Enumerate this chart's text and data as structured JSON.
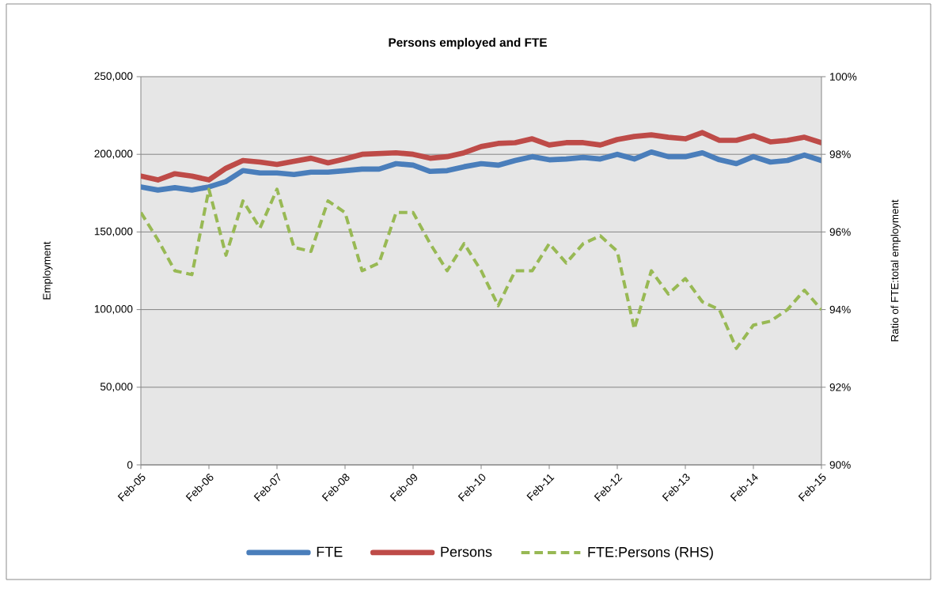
{
  "chart_data": {
    "type": "line",
    "title": "Persons employed and FTE",
    "ylabel": "Employment",
    "y2label": "Ratio of FTE:total employment",
    "categories": [
      "Feb-05",
      null,
      null,
      null,
      "Feb-06",
      null,
      null,
      null,
      "Feb-07",
      null,
      null,
      null,
      "Feb-08",
      null,
      null,
      null,
      "Feb-09",
      null,
      null,
      null,
      "Feb-10",
      null,
      null,
      null,
      "Feb-11",
      null,
      null,
      null,
      "Feb-12",
      null,
      null,
      null,
      "Feb-13",
      null,
      null,
      null,
      "Feb-14",
      null,
      null,
      null,
      "Feb-15"
    ],
    "series": [
      {
        "name": "FTE",
        "color": "#4a7ebb",
        "values": [
          179000,
          177000,
          178500,
          177000,
          179000,
          182500,
          189500,
          188000,
          188000,
          187000,
          188500,
          188500,
          189500,
          190500,
          190500,
          194000,
          193000,
          189000,
          189500,
          192000,
          194000,
          193000,
          196000,
          198500,
          196500,
          197000,
          198000,
          197000,
          200000,
          197000,
          201500,
          198500,
          198500,
          201000,
          196500,
          194000,
          198500,
          195000,
          196000,
          199500,
          196000
        ]
      },
      {
        "name": "Persons",
        "color": "#be4b48",
        "values": [
          186000,
          183500,
          187500,
          186000,
          183500,
          191000,
          196000,
          195000,
          193500,
          195500,
          197500,
          194500,
          197000,
          200000,
          200500,
          201000,
          200000,
          197500,
          198500,
          201000,
          205000,
          207000,
          207500,
          210000,
          206000,
          207500,
          207500,
          206000,
          209500,
          211500,
          212500,
          211000,
          210000,
          214000,
          209000,
          209000,
          212000,
          208000,
          209000,
          211000,
          207500
        ]
      },
      {
        "name": "FTE:Persons (RHS)",
        "color": "#98b954",
        "axis": "y2",
        "line_style": "dashed",
        "values": [
          96.5,
          95.8,
          95.0,
          94.9,
          97.1,
          95.4,
          96.8,
          96.1,
          97.1,
          95.6,
          95.5,
          96.8,
          96.5,
          95.0,
          95.2,
          96.5,
          96.5,
          95.7,
          95.0,
          95.7,
          95.0,
          94.1,
          95.0,
          95.0,
          95.7,
          95.2,
          95.7,
          95.9,
          95.5,
          93.5,
          95.0,
          94.4,
          94.8,
          94.2,
          94.0,
          93.0,
          93.6,
          93.7,
          94.0,
          94.5,
          94.0
        ]
      }
    ],
    "ylim": [
      0,
      250000
    ],
    "yticks": [
      0,
      {
        "value": 50000,
        "label": "50,000"
      },
      {
        "value": 100000,
        "label": "100,000"
      },
      {
        "value": 150000,
        "label": "150,000"
      },
      {
        "value": 200000,
        "label": "200,000"
      },
      {
        "value": 250000,
        "label": "250,000"
      }
    ],
    "y2lim": [
      90,
      100
    ],
    "y2ticks": [
      {
        "value": 90,
        "label": "90%"
      },
      {
        "value": 92,
        "label": "92%"
      },
      {
        "value": 94,
        "label": "94%"
      },
      {
        "value": 96,
        "label": "96%"
      },
      {
        "value": 98,
        "label": "98%"
      },
      {
        "value": 100,
        "label": "100%"
      }
    ],
    "grid": "y",
    "legend": "bottom"
  }
}
